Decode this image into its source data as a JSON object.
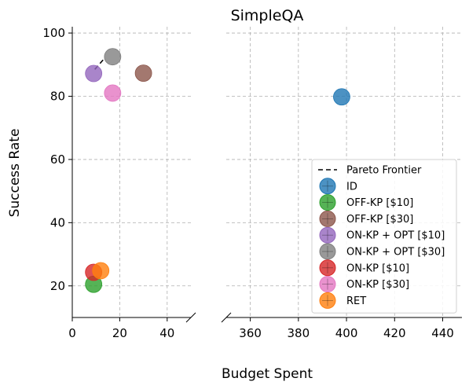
{
  "chart_data": {
    "type": "scatter",
    "title": "SimpleQA",
    "xlabel": "Budget Spent",
    "ylabel": "Success Rate",
    "x_axis_broken": true,
    "xlim_left": [
      0,
      50
    ],
    "xlim_right": [
      350,
      448
    ],
    "ylim": [
      10,
      102
    ],
    "xticks_left": [
      0,
      20,
      40
    ],
    "xticks_right": [
      360,
      380,
      400,
      420,
      440
    ],
    "yticks": [
      20,
      40,
      60,
      80,
      100
    ],
    "grid": true,
    "legend_position": "lower-right",
    "pareto_frontier": {
      "name": "Pareto Frontier",
      "points": [
        [
          9.5,
          88.5
        ],
        [
          13,
          91.5
        ]
      ]
    },
    "series": [
      {
        "name": "ID",
        "color": "#1f77b4",
        "points": [
          [
            398,
            79.8
          ]
        ]
      },
      {
        "name": "OFF-KP [$10]",
        "color": "#2ca02c",
        "points": [
          [
            9,
            20.5
          ]
        ]
      },
      {
        "name": "OFF-KP [$30]",
        "color": "#8c564b",
        "points": [
          [
            30,
            87.3
          ]
        ]
      },
      {
        "name": "ON-KP + OPT [$10]",
        "color": "#9467bd",
        "points": [
          [
            9,
            87.2
          ]
        ]
      },
      {
        "name": "ON-KP + OPT [$30]",
        "color": "#7f7f7f",
        "points": [
          [
            17,
            92.5
          ]
        ]
      },
      {
        "name": "ON-KP [$10]",
        "color": "#d62728",
        "points": [
          [
            9,
            24.3
          ]
        ]
      },
      {
        "name": "ON-KP [$30]",
        "color": "#e377c2",
        "points": [
          [
            17,
            81
          ]
        ]
      },
      {
        "name": "RET",
        "color": "#ff7f0e",
        "points": [
          [
            12,
            24.8
          ]
        ]
      }
    ]
  }
}
